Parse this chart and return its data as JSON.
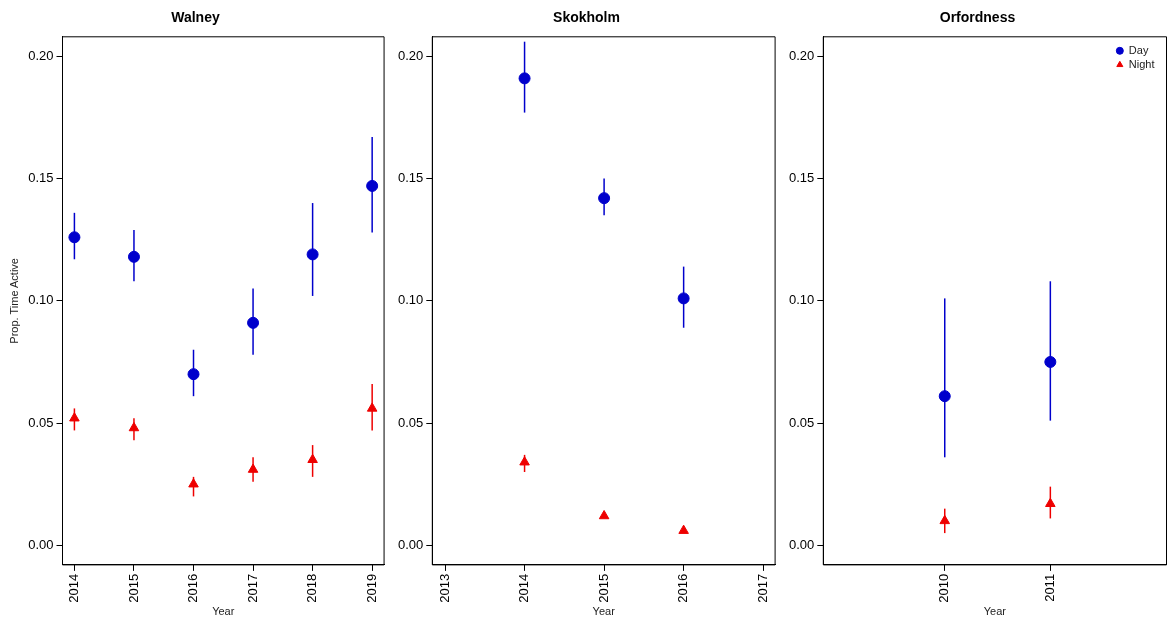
{
  "chart_data": [
    {
      "type": "scatter",
      "title": "Walney",
      "xlabel": "Year",
      "ylabel": "Prop. Time Active",
      "grid": false,
      "legend": false,
      "x": [
        2014,
        2015,
        2016,
        2017,
        2018,
        2019
      ],
      "xlim": [
        2013.8,
        2019.2
      ],
      "xticks": [
        2014,
        2015,
        2016,
        2017,
        2018,
        2019
      ],
      "ylim": [
        -0.008,
        0.208
      ],
      "yticks": [
        {
          "value": 0,
          "label": "0.00"
        },
        {
          "value": 0.05,
          "label": "0.05"
        },
        {
          "value": 0.1,
          "label": "0.10"
        },
        {
          "value": 0.15,
          "label": "0.15"
        },
        {
          "value": 0.2,
          "label": "0.20"
        }
      ],
      "series": [
        {
          "color": "#0000cc",
          "marker": "circle",
          "values": [
            0.126,
            0.118,
            0.07,
            0.091,
            0.119,
            0.147
          ],
          "errors": [
            [
              0.117,
              0.136
            ],
            [
              0.108,
              0.129
            ],
            [
              0.061,
              0.08
            ],
            [
              0.078,
              0.105
            ],
            [
              0.102,
              0.14
            ],
            [
              0.128,
              0.167
            ]
          ]
        },
        {
          "color": "#ee0000",
          "marker": "triangle",
          "values": [
            0.052,
            0.048,
            0.025,
            0.031,
            0.035,
            0.056
          ],
          "errors": [
            [
              0.047,
              0.056
            ],
            [
              0.043,
              0.052
            ],
            [
              0.02,
              0.028
            ],
            [
              0.026,
              0.036
            ],
            [
              0.028,
              0.041
            ],
            [
              0.047,
              0.066
            ]
          ]
        }
      ]
    },
    {
      "type": "scatter",
      "title": "Skokholm",
      "xlabel": "Year",
      "grid": false,
      "legend": false,
      "x": [
        2014,
        2015,
        2016
      ],
      "xlim": [
        2012.84,
        2017.15
      ],
      "xticks": [
        2013,
        2014,
        2015,
        2016,
        2017
      ],
      "ylim": [
        -0.008,
        0.208
      ],
      "yticks": [
        {
          "value": 0,
          "label": "0.00"
        },
        {
          "value": 0.05,
          "label": "0.05"
        },
        {
          "value": 0.1,
          "label": "0.10"
        },
        {
          "value": 0.15,
          "label": "0.15"
        },
        {
          "value": 0.2,
          "label": "0.20"
        }
      ],
      "series": [
        {
          "color": "#0000cc",
          "marker": "circle",
          "values": [
            0.191,
            0.142,
            0.101
          ],
          "errors": [
            [
              0.177,
              0.206
            ],
            [
              0.135,
              0.15
            ],
            [
              0.089,
              0.114
            ]
          ]
        },
        {
          "color": "#ee0000",
          "marker": "triangle",
          "values": [
            0.034,
            0.012,
            0.006
          ],
          "errors": [
            [
              0.03,
              0.037
            ],
            null,
            null
          ]
        }
      ]
    },
    {
      "type": "scatter",
      "title": "Orfordness",
      "xlabel": "Year",
      "grid": false,
      "legend": "top right",
      "x": [
        2010,
        2011
      ],
      "xlim": [
        2008.85,
        2012.1
      ],
      "xticks": [
        2010,
        2011
      ],
      "ylim": [
        -0.008,
        0.208
      ],
      "yticks": [
        {
          "value": 0,
          "label": "0.00"
        },
        {
          "value": 0.05,
          "label": "0.05"
        },
        {
          "value": 0.1,
          "label": "0.10"
        },
        {
          "value": 0.15,
          "label": "0.15"
        },
        {
          "value": 0.2,
          "label": "0.20"
        }
      ],
      "series": [
        {
          "name": "Day",
          "color": "#0000cc",
          "marker": "circle",
          "values": [
            0.061,
            0.075
          ],
          "errors": [
            [
              0.036,
              0.101
            ],
            [
              0.051,
              0.108
            ]
          ]
        },
        {
          "name": "Night",
          "color": "#ee0000",
          "marker": "triangle",
          "values": [
            0.01,
            0.017
          ],
          "errors": [
            [
              0.005,
              0.015
            ],
            [
              0.011,
              0.024
            ]
          ]
        }
      ]
    }
  ]
}
